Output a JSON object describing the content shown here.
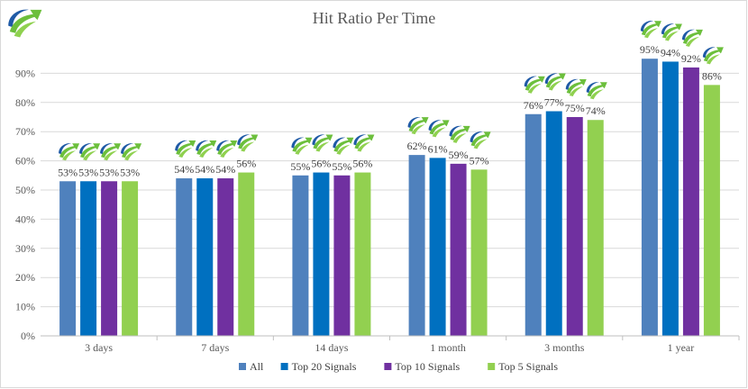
{
  "chart_data": {
    "type": "bar",
    "title": "Hit Ratio Per Time",
    "xlabel": "",
    "ylabel": "",
    "categories": [
      "3 days",
      "7 days",
      "14 days",
      "1 month",
      "3 months",
      "1 year"
    ],
    "series": [
      {
        "name": "All",
        "color": "#4f81bd",
        "values": [
          53,
          54,
          55,
          62,
          76,
          95
        ]
      },
      {
        "name": "Top 20 Signals",
        "color": "#0070c0",
        "values": [
          53,
          54,
          56,
          61,
          77,
          94
        ]
      },
      {
        "name": "Top 10 Signals",
        "color": "#7030a0",
        "values": [
          53,
          54,
          55,
          59,
          75,
          92
        ]
      },
      {
        "name": "Top 5 Signals",
        "color": "#92d050",
        "values": [
          53,
          56,
          56,
          57,
          74,
          86
        ]
      }
    ],
    "ylim": [
      0,
      100
    ],
    "yticks": [
      "0%",
      "10%",
      "20%",
      "30%",
      "40%",
      "50%",
      "60%",
      "70%",
      "80%",
      "90%"
    ],
    "data_labels": {
      "shown": true,
      "format": "percent",
      "marker_icon": "growth-arrow-logo-icon"
    },
    "grid": true,
    "legend_position": "bottom"
  },
  "logo": {
    "icon": "growth-arrow-logo-icon"
  }
}
